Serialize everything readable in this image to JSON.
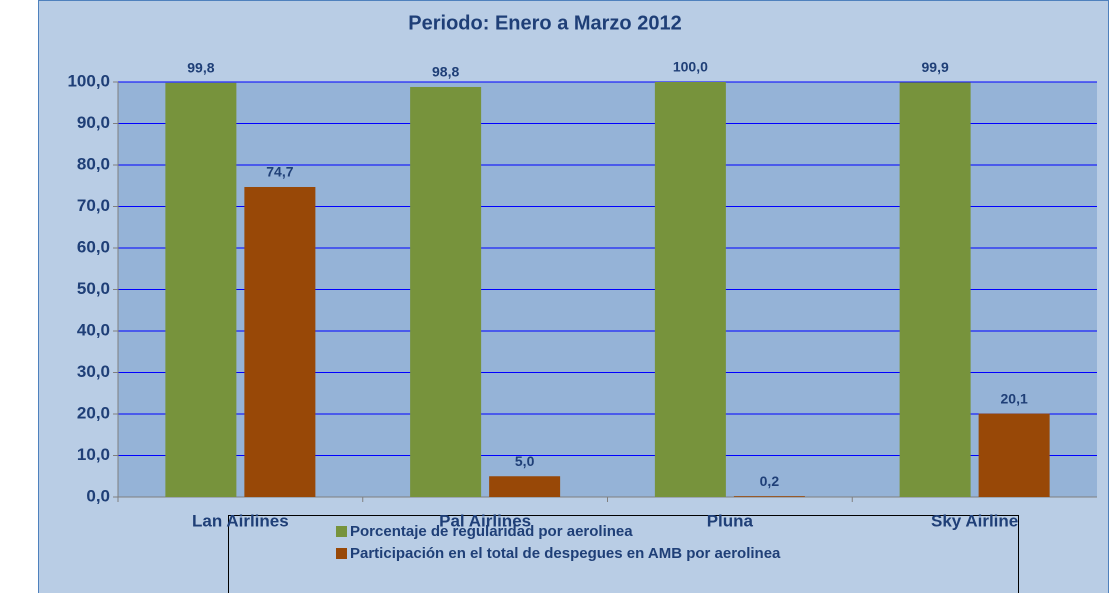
{
  "chart_data": {
    "type": "bar",
    "title": "Periodo: Enero  a  Marzo 2012",
    "categories": [
      "Lan Airlines",
      "Pal Airlines",
      "Pluna",
      "Sky Airline"
    ],
    "series": [
      {
        "name": "Porcentaje de regularidad por aerolinea",
        "color": "#77933c",
        "values": [
          99.8,
          98.8,
          100.0,
          99.9
        ],
        "value_labels": [
          "99,8",
          "98,8",
          "100,0",
          "99,9"
        ]
      },
      {
        "name": "Participación en el total de despegues en AMB por aerolinea",
        "color": "#984807",
        "values": [
          74.7,
          5.0,
          0.2,
          20.1
        ],
        "value_labels": [
          "74,7",
          "5,0",
          "0,2",
          "20,1"
        ]
      }
    ],
    "ylim": [
      0,
      100
    ],
    "yticks": [
      {
        "value": 0,
        "label": "0,0"
      },
      {
        "value": 10,
        "label": "10,0"
      },
      {
        "value": 20,
        "label": "20,0"
      },
      {
        "value": 30,
        "label": "30,0"
      },
      {
        "value": 40,
        "label": "40,0"
      },
      {
        "value": 50,
        "label": "50,0"
      },
      {
        "value": 60,
        "label": "60,0"
      },
      {
        "value": 70,
        "label": "70,0"
      },
      {
        "value": 80,
        "label": "80,0"
      },
      {
        "value": 90,
        "label": "90,0"
      },
      {
        "value": 100,
        "label": "100,0"
      }
    ],
    "grid": true
  }
}
